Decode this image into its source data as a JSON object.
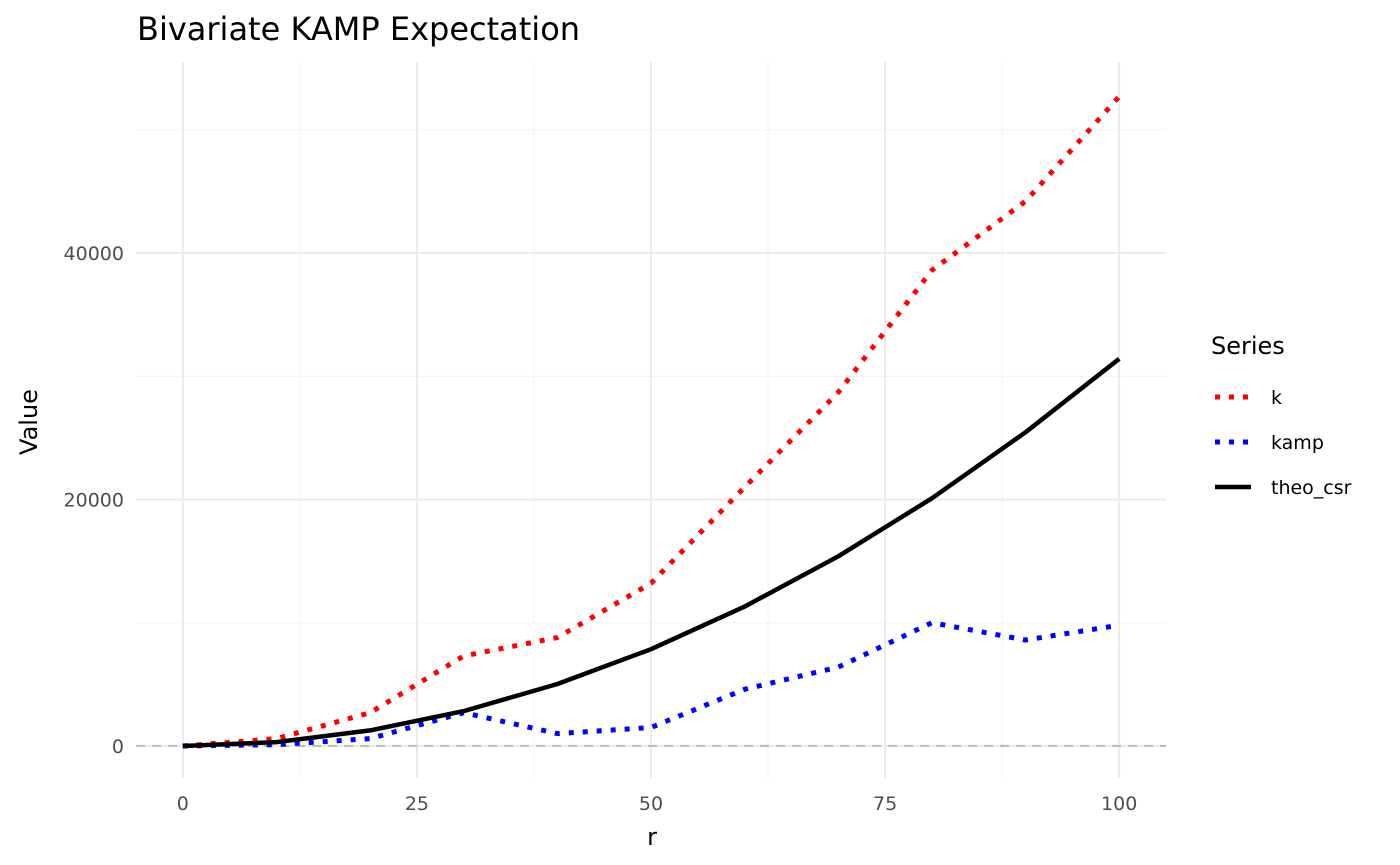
{
  "chart_data": {
    "type": "line",
    "title": "Bivariate KAMP Expectation",
    "xlabel": "r",
    "ylabel": "Value",
    "xlim": [
      -5,
      105
    ],
    "ylim": [
      -2600,
      55500
    ],
    "x_ticks": [
      0,
      25,
      50,
      75,
      100
    ],
    "y_ticks": [
      0,
      20000,
      40000
    ],
    "x_tick_labels": [
      "0",
      "25",
      "50",
      "75",
      "100"
    ],
    "y_tick_labels": [
      "0",
      "20000",
      "40000"
    ],
    "grid": true,
    "legend": {
      "title": "Series",
      "position": "right"
    },
    "reference_line": {
      "y": 0,
      "style": "dashed",
      "color": "#bdbdbd"
    },
    "x": [
      0,
      10,
      20,
      30,
      40,
      50,
      60,
      70,
      80,
      90,
      100
    ],
    "series": [
      {
        "name": "k",
        "color": "#ff0000",
        "style": "dotted",
        "values": [
          0,
          600,
          2700,
          7300,
          8800,
          13200,
          21000,
          28700,
          38600,
          44200,
          52700
        ]
      },
      {
        "name": "kamp",
        "color": "#0000ff",
        "style": "dotted",
        "values": [
          0,
          100,
          600,
          2700,
          1000,
          1500,
          4600,
          6400,
          10000,
          8600,
          9800
        ]
      },
      {
        "name": "theo_csr",
        "color": "#000000",
        "style": "solid",
        "values": [
          0,
          310,
          1260,
          2830,
          5030,
          7850,
          11310,
          15390,
          20100,
          25450,
          31420
        ]
      }
    ]
  }
}
